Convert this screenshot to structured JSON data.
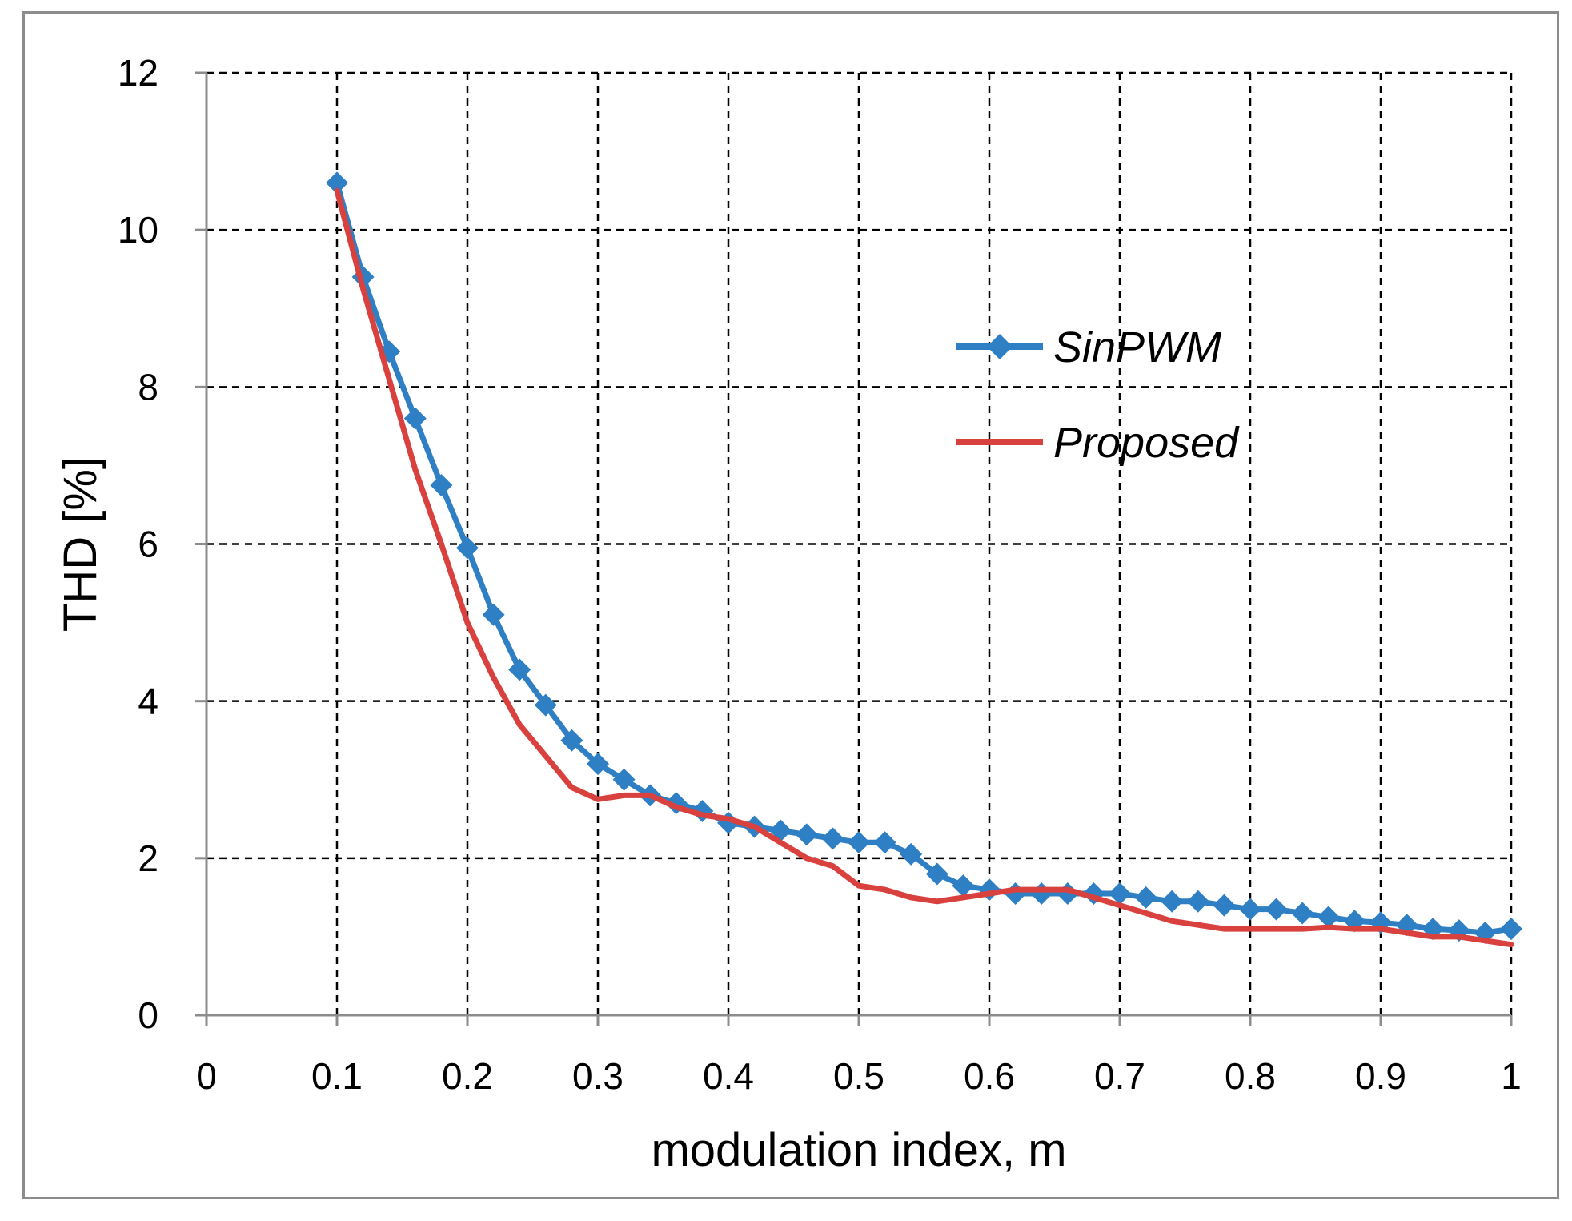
{
  "chart_data": {
    "type": "line",
    "title": "",
    "xlabel": "modulation index, m",
    "ylabel": "THD [%]",
    "xlim": [
      0,
      1
    ],
    "ylim": [
      0,
      12
    ],
    "xticks": [
      "0",
      "0.1",
      "0.2",
      "0.3",
      "0.4",
      "0.5",
      "0.6",
      "0.7",
      "0.8",
      "0.9",
      "1"
    ],
    "yticks": [
      "0",
      "2",
      "4",
      "6",
      "8",
      "10",
      "12"
    ],
    "grid": true,
    "legend_position": "top-right",
    "x": [
      0.1,
      0.12,
      0.14,
      0.16,
      0.18,
      0.2,
      0.22,
      0.24,
      0.26,
      0.28,
      0.3,
      0.32,
      0.34,
      0.36,
      0.38,
      0.4,
      0.42,
      0.44,
      0.46,
      0.48,
      0.5,
      0.52,
      0.54,
      0.56,
      0.58,
      0.6,
      0.62,
      0.64,
      0.66,
      0.68,
      0.7,
      0.72,
      0.74,
      0.76,
      0.78,
      0.8,
      0.82,
      0.84,
      0.86,
      0.88,
      0.9,
      0.92,
      0.94,
      0.96,
      0.98,
      1.0
    ],
    "series": [
      {
        "name": "SinPWM",
        "color": "#2e7fc4",
        "marker": "diamond",
        "values": [
          10.6,
          9.4,
          8.45,
          7.6,
          6.75,
          5.95,
          5.1,
          4.4,
          3.95,
          3.5,
          3.2,
          3.0,
          2.8,
          2.7,
          2.6,
          2.45,
          2.4,
          2.35,
          2.3,
          2.25,
          2.2,
          2.2,
          2.05,
          1.8,
          1.65,
          1.6,
          1.55,
          1.55,
          1.55,
          1.55,
          1.55,
          1.5,
          1.45,
          1.45,
          1.4,
          1.35,
          1.35,
          1.3,
          1.25,
          1.2,
          1.18,
          1.15,
          1.1,
          1.08,
          1.05,
          1.1
        ]
      },
      {
        "name": "Proposed",
        "color": "#d9413f",
        "marker": "none",
        "values": [
          10.5,
          9.25,
          8.1,
          6.95,
          6.0,
          5.0,
          4.3,
          3.7,
          3.3,
          2.9,
          2.75,
          2.8,
          2.8,
          2.65,
          2.55,
          2.5,
          2.4,
          2.2,
          2.0,
          1.9,
          1.65,
          1.6,
          1.5,
          1.45,
          1.5,
          1.55,
          1.6,
          1.6,
          1.6,
          1.5,
          1.4,
          1.3,
          1.2,
          1.15,
          1.1,
          1.1,
          1.1,
          1.1,
          1.12,
          1.1,
          1.1,
          1.05,
          1.0,
          1.0,
          0.95,
          0.9
        ]
      }
    ]
  }
}
